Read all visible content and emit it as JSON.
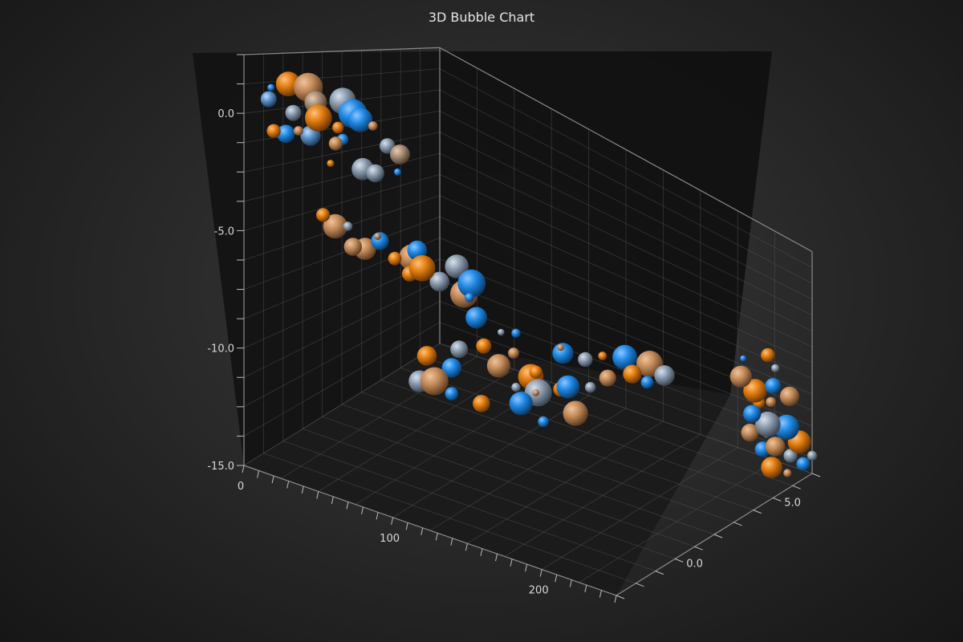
{
  "chart_data": {
    "type": "scatter",
    "subtype": "3d-bubble",
    "title": "3D Bubble Chart",
    "axes": {
      "x": {
        "range": [
          0,
          250
        ],
        "ticks": [
          0,
          100,
          200
        ],
        "tick_labels": [
          "0",
          "100",
          "200"
        ]
      },
      "y": {
        "range": [
          -15,
          2.5
        ],
        "ticks": [
          0,
          -5,
          -10,
          -15
        ],
        "tick_labels": [
          "0.0",
          "-5.0",
          "-10.0",
          "-15.0"
        ]
      },
      "z": {
        "range": [
          -3,
          7
        ],
        "ticks": [
          0,
          5
        ],
        "tick_labels": [
          "0.0",
          "5.0"
        ]
      }
    },
    "grid": true,
    "legend": "none",
    "palette": [
      "#1e88e5",
      "#e07b10",
      "#c28a5a",
      "#8a9aac",
      "#5a8fc8",
      "#a88c74"
    ],
    "points": [
      [
        5,
        1.2,
        -2,
        0
      ],
      [
        20,
        0.6,
        -2,
        3
      ],
      [
        10,
        1.5,
        -1.5,
        1
      ],
      [
        30,
        0.2,
        -2.5,
        2
      ],
      [
        15,
        -0.5,
        -2,
        0
      ],
      [
        40,
        1.8,
        -1,
        3
      ],
      [
        50,
        1.0,
        -2,
        1
      ],
      [
        25,
        -0.3,
        -1.5,
        4
      ],
      [
        60,
        2.0,
        -2,
        0
      ],
      [
        55,
        0.5,
        -2.5,
        2
      ],
      [
        35,
        1.6,
        -2,
        5
      ],
      [
        45,
        -0.8,
        -2,
        1
      ],
      [
        70,
        0.8,
        -1,
        3
      ],
      [
        65,
        1.9,
        -2,
        0
      ],
      [
        80,
        2.2,
        -2.5,
        2
      ],
      [
        75,
        -0.2,
        -2,
        3
      ],
      [
        50,
        1.5,
        -3,
        1
      ],
      [
        40,
        0.0,
        -1,
        0
      ],
      [
        85,
        1.0,
        -1.5,
        5
      ],
      [
        30,
        2.1,
        -2,
        2
      ],
      [
        20,
        -0.1,
        -3,
        1
      ],
      [
        60,
        -0.6,
        -1.5,
        3
      ],
      [
        90,
        0.4,
        -2,
        0
      ],
      [
        10,
        0.9,
        -2.5,
        4
      ],
      [
        35,
        -4.2,
        -1,
        2
      ],
      [
        50,
        -3.6,
        -1.5,
        3
      ],
      [
        65,
        -3.9,
        -1,
        0
      ],
      [
        80,
        -4.3,
        -0.5,
        2
      ],
      [
        95,
        -4.0,
        -1,
        1
      ],
      [
        105,
        -4.5,
        -1,
        3
      ],
      [
        120,
        -4.2,
        -0.5,
        0
      ],
      [
        40,
        -3.3,
        -2,
        1
      ],
      [
        55,
        -4.6,
        -1,
        2
      ],
      [
        70,
        -3.4,
        -1.5,
        5
      ],
      [
        85,
        -4.8,
        -1,
        1
      ],
      [
        110,
        -3.7,
        -0.5,
        3
      ],
      [
        125,
        -4.6,
        -1,
        0
      ],
      [
        60,
        -4.1,
        -2,
        2
      ],
      [
        100,
        -3.9,
        -1.5,
        1
      ],
      [
        45,
        -4.9,
        -0.5,
        4
      ],
      [
        90,
        -3.5,
        -1,
        0
      ],
      [
        115,
        -4.9,
        -0.5,
        2
      ],
      [
        75,
        -4.4,
        -1,
        1
      ],
      [
        110,
        -6.6,
        0.5,
        0
      ],
      [
        120,
        -7.2,
        1,
        3
      ],
      [
        115,
        -7.9,
        0.5,
        1
      ],
      [
        125,
        -8.6,
        0.5,
        2
      ],
      [
        130,
        -6.9,
        1,
        0
      ],
      [
        105,
        -8.2,
        0,
        3
      ],
      [
        140,
        -8.9,
        1,
        1
      ],
      [
        135,
        -7.6,
        0.5,
        2
      ],
      [
        100,
        -9.3,
        0,
        0
      ],
      [
        145,
        -9.6,
        1,
        3
      ],
      [
        150,
        -8.1,
        0.5,
        1
      ],
      [
        155,
        -7.3,
        1.5,
        0
      ],
      [
        160,
        -6.6,
        1,
        2
      ],
      [
        170,
        -7.1,
        1.5,
        3
      ],
      [
        165,
        -8.6,
        1,
        0
      ],
      [
        175,
        -6.9,
        2,
        1
      ],
      [
        185,
        -7.6,
        1.5,
        2
      ],
      [
        190,
        -6.4,
        2,
        0
      ],
      [
        180,
        -8.1,
        1,
        3
      ],
      [
        195,
        -7.2,
        2,
        1
      ],
      [
        200,
        -6.6,
        2.5,
        2
      ],
      [
        205,
        -7.3,
        2,
        0
      ],
      [
        210,
        -6.9,
        2.5,
        3
      ],
      [
        150,
        -9.2,
        0.5,
        2
      ],
      [
        160,
        -8.9,
        1,
        1
      ],
      [
        140,
        -10.1,
        0.5,
        0
      ],
      [
        130,
        -9.8,
        1,
        3
      ],
      [
        120,
        -10.5,
        0,
        1
      ],
      [
        170,
        -9.9,
        1,
        2
      ],
      [
        155,
        -10.6,
        0.5,
        0
      ],
      [
        90,
        -8.8,
        -0.5,
        1
      ],
      [
        95,
        -9.9,
        -0.5,
        2
      ],
      [
        100,
        -10.6,
        0,
        0
      ],
      [
        85,
        -10.2,
        -0.5,
        3
      ],
      [
        230,
        -6.0,
        5,
        0
      ],
      [
        240,
        -5.5,
        5.5,
        1
      ],
      [
        235,
        -6.8,
        4.5,
        2
      ],
      [
        245,
        -6.2,
        5.5,
        3
      ],
      [
        250,
        -7.0,
        5,
        0
      ],
      [
        238,
        -7.9,
        5,
        1
      ],
      [
        242,
        -8.8,
        5.5,
        2
      ],
      [
        236,
        -9.6,
        5,
        0
      ],
      [
        240,
        -10.5,
        5.5,
        3
      ],
      [
        232,
        -11.2,
        6,
        1
      ],
      [
        245,
        -11.9,
        5.5,
        2
      ],
      [
        238,
        -12.8,
        6,
        0
      ],
      [
        242,
        -13.5,
        6.5,
        3
      ],
      [
        236,
        -14.2,
        6,
        1
      ],
      [
        240,
        -14.9,
        6.5,
        2
      ],
      [
        230,
        -13.1,
        6,
        0
      ],
      [
        248,
        -12.2,
        6.5,
        1
      ],
      [
        250,
        -13.6,
        7,
        3
      ],
      [
        228,
        -11.6,
        5.5,
        2
      ],
      [
        246,
        -10.8,
        6,
        0
      ],
      [
        234,
        -9.2,
        5.5,
        1
      ],
      [
        248,
        -8.4,
        6,
        2
      ],
      [
        226,
        -12.6,
        6.5,
        3
      ],
      [
        244,
        -14.5,
        7,
        0
      ]
    ]
  }
}
